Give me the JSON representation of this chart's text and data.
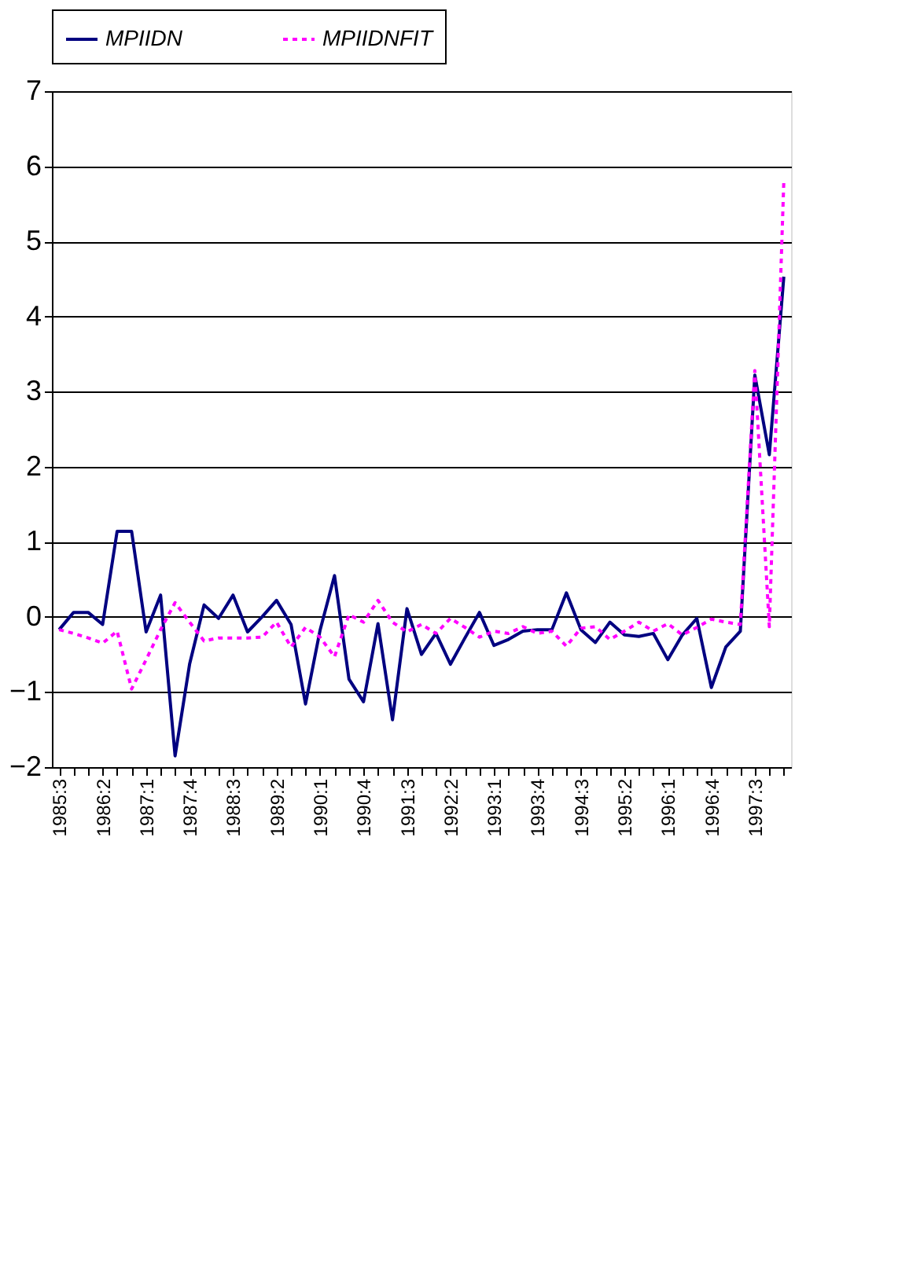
{
  "chart_data": {
    "type": "line",
    "categories": [
      "1985:3",
      null,
      null,
      "1986:2",
      null,
      null,
      "1987:1",
      null,
      null,
      "1987:4",
      null,
      null,
      "1988:3",
      null,
      null,
      "1989:2",
      null,
      null,
      "1990:1",
      null,
      null,
      "1990:4",
      null,
      null,
      "1991:3",
      null,
      null,
      "1992:2",
      null,
      null,
      "1993:1",
      null,
      null,
      "1993:4",
      null,
      null,
      "1994:3",
      null,
      null,
      "1995:2",
      null,
      null,
      "1996:1",
      null,
      null,
      "1996:4",
      null,
      null,
      "1997:3",
      null,
      null
    ],
    "series": [
      {
        "name": "MPIIDN",
        "color": "#000080",
        "line_style": "solid",
        "values": [
          -0.17,
          0.06,
          0.06,
          -0.1,
          1.14,
          1.14,
          -0.2,
          0.29,
          -1.85,
          -0.63,
          0.16,
          -0.02,
          0.29,
          -0.2,
          0.0,
          0.22,
          -0.1,
          -1.16,
          -0.18,
          0.55,
          -0.83,
          -1.13,
          -0.09,
          -1.37,
          0.11,
          -0.5,
          -0.22,
          -0.63,
          -0.28,
          0.06,
          -0.38,
          -0.3,
          -0.19,
          -0.17,
          -0.17,
          0.32,
          -0.17,
          -0.34,
          -0.07,
          -0.24,
          -0.26,
          -0.22,
          -0.57,
          -0.24,
          -0.02,
          -0.94,
          -0.4,
          -0.19,
          3.22,
          2.16,
          4.53
        ]
      },
      {
        "name": "MPIIDNFIT",
        "color": "#ff00ff",
        "line_style": "dotted",
        "values": [
          -0.17,
          -0.22,
          -0.28,
          -0.35,
          -0.19,
          -0.96,
          -0.57,
          -0.17,
          0.19,
          -0.07,
          -0.32,
          -0.28,
          -0.28,
          -0.28,
          -0.27,
          -0.07,
          -0.4,
          -0.14,
          -0.27,
          -0.53,
          0.03,
          -0.07,
          0.22,
          -0.07,
          -0.2,
          -0.1,
          -0.22,
          -0.02,
          -0.14,
          -0.27,
          -0.19,
          -0.22,
          -0.13,
          -0.22,
          -0.19,
          -0.39,
          -0.15,
          -0.13,
          -0.3,
          -0.19,
          -0.07,
          -0.19,
          -0.09,
          -0.24,
          -0.14,
          -0.03,
          -0.07,
          -0.1,
          3.28,
          -0.13,
          5.8
        ]
      }
    ],
    "ylim": [
      -2,
      7
    ],
    "yticks": [
      -2,
      -1,
      0,
      1,
      2,
      3,
      4,
      5,
      6,
      7
    ],
    "grid": "y",
    "legend": "top",
    "marker": "none"
  }
}
